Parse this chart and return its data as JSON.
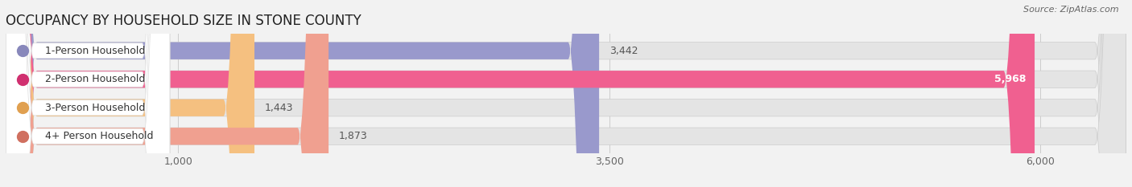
{
  "title": "OCCUPANCY BY HOUSEHOLD SIZE IN STONE COUNTY",
  "source": "Source: ZipAtlas.com",
  "categories": [
    "1-Person Household",
    "2-Person Household",
    "3-Person Household",
    "4+ Person Household"
  ],
  "values": [
    3442,
    5968,
    1443,
    1873
  ],
  "bar_colors": [
    "#9999cc",
    "#f06090",
    "#f5c080",
    "#f0a090"
  ],
  "dot_colors": [
    "#8888bb",
    "#d03070",
    "#e0a050",
    "#d07060"
  ],
  "value_labels": [
    "3,442",
    "5,968",
    "1,443",
    "1,873"
  ],
  "x_ticks": [
    1000,
    3500,
    6000
  ],
  "x_tick_labels": [
    "1,000",
    "3,500",
    "6,000"
  ],
  "xmin": 0,
  "xmax": 6500,
  "background_color": "#f2f2f2",
  "bar_bg_color": "#e4e4e4",
  "label_bg_color": "#ffffff",
  "title_fontsize": 12,
  "source_fontsize": 8,
  "label_fontsize": 9,
  "value_fontsize": 9,
  "tick_fontsize": 9
}
